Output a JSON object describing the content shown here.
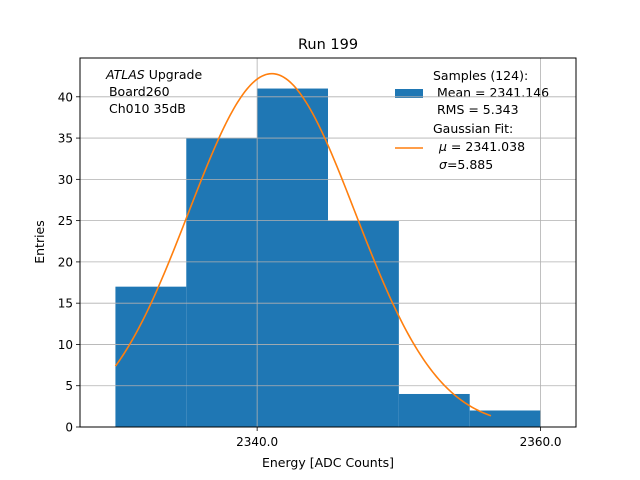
{
  "chart_data": {
    "type": "bar",
    "title": "Run 199",
    "xlabel": "Energy [ADC Counts]",
    "ylabel": "Entries",
    "xlim": [
      2327.5,
      2362.5
    ],
    "ylim": [
      0,
      44.7
    ],
    "grid": true,
    "bin_edges": [
      2330,
      2335,
      2340,
      2345,
      2350,
      2355,
      2360
    ],
    "values": [
      17,
      35,
      41,
      25,
      4,
      2
    ],
    "x_ticks": [
      2340,
      2360
    ],
    "x_tick_labels": [
      "2340.0",
      "2360.0"
    ],
    "y_ticks": [
      0,
      5,
      10,
      15,
      20,
      25,
      30,
      35,
      40
    ],
    "y_tick_labels": [
      "0",
      "5",
      "10",
      "15",
      "20",
      "25",
      "30",
      "35",
      "40"
    ],
    "fit": {
      "type": "gaussian",
      "mu": 2341.038,
      "sigma": 5.885,
      "amplitude": 42.8,
      "x_range": [
        2330,
        2356.5
      ]
    },
    "colors": {
      "bars": "#1f77b4",
      "fit": "#ff7f0e",
      "grid": "#b0b0b0"
    },
    "annotation": {
      "italic": "ATLAS",
      "rest": " Upgrade",
      "line2": " Board260",
      "line3": " Ch010 35dB"
    },
    "legend": {
      "placement": "upper-right",
      "samples": [
        "Samples (124):",
        " Mean = 2341.146",
        " RMS = 5.343"
      ],
      "fit_title": "Gaussian Fit:",
      "mu_symbol": "μ",
      "mu_value": " = 2341.038",
      "sigma_symbol": "σ",
      "sigma_value": "=5.885"
    }
  }
}
